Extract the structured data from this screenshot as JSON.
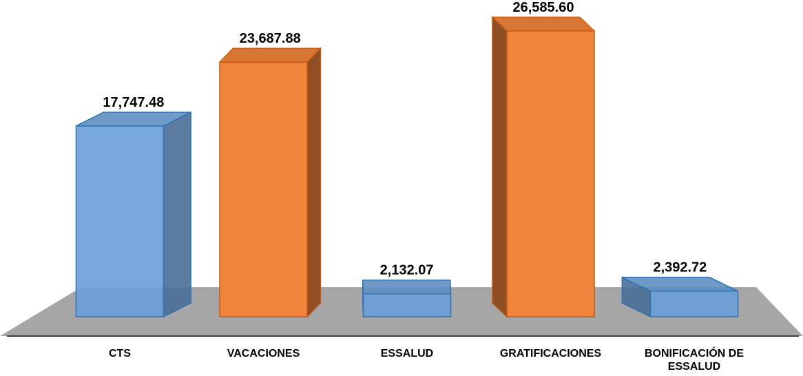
{
  "chart_data": {
    "type": "bar3d",
    "categories": [
      "CTS",
      "VACACIONES",
      "ESSALUD",
      "GRATIFICACIONES",
      "BONIFICACIÓN DE ESSALUD"
    ],
    "values": [
      17747.48,
      23687.88,
      2132.07,
      26585.6,
      2392.72
    ],
    "value_labels": [
      "17,747.48",
      "23,687.88",
      "2,132.07",
      "26,585.60",
      "2,392.72"
    ],
    "colors": [
      "#6a9fd8",
      "#f0843a",
      "#6a9fd8",
      "#f0843a",
      "#6a9fd8"
    ]
  }
}
